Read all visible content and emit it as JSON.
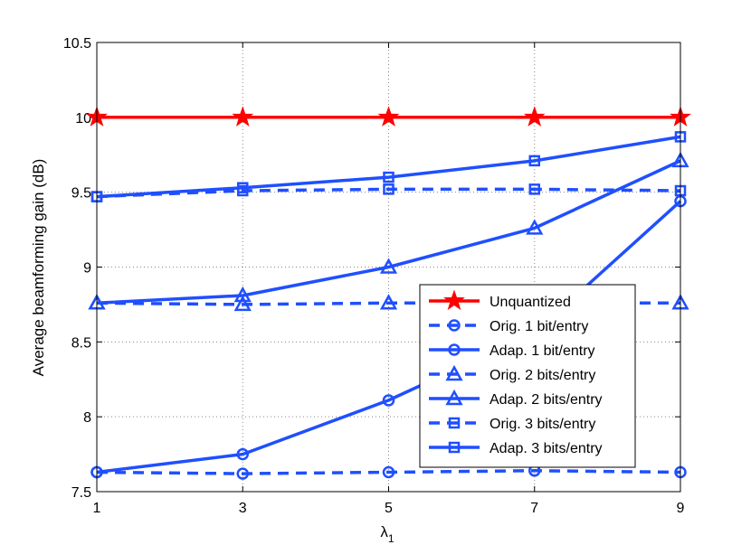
{
  "chart_data": {
    "type": "line",
    "xlabel": "λ",
    "xlabel_sub": "1",
    "ylabel": "Average beamforming gain (dB)",
    "x": [
      1,
      3,
      5,
      7,
      9
    ],
    "xlim": [
      1,
      9
    ],
    "ylim": [
      7.5,
      10.5
    ],
    "xticks": [
      "1",
      "3",
      "5",
      "7",
      "9"
    ],
    "yticks": [
      "7.5",
      "8",
      "8.5",
      "9",
      "9.5",
      "10",
      "10.5"
    ],
    "grid": true,
    "legend_position": "bottom-right",
    "series": [
      {
        "name": "Unquantized",
        "values": [
          10,
          10,
          10,
          10,
          10
        ],
        "color": "#ff0000",
        "marker": "star",
        "dash": "solid"
      },
      {
        "name": "Orig. 1 bit/entry",
        "values": [
          7.63,
          7.62,
          7.63,
          7.64,
          7.63
        ],
        "color": "#1f4fff",
        "marker": "circle",
        "dash": "dashed"
      },
      {
        "name": "Adap. 1 bit/entry",
        "values": [
          7.63,
          7.75,
          8.11,
          8.56,
          9.44
        ],
        "color": "#1f4fff",
        "marker": "circle",
        "dash": "solid"
      },
      {
        "name": "Orig. 2 bits/entry",
        "values": [
          8.76,
          8.75,
          8.76,
          8.76,
          8.76
        ],
        "color": "#1f4fff",
        "marker": "triangle",
        "dash": "dashed"
      },
      {
        "name": "Adap. 2 bits/entry",
        "values": [
          8.76,
          8.81,
          9.0,
          9.26,
          9.71
        ],
        "color": "#1f4fff",
        "marker": "triangle",
        "dash": "solid"
      },
      {
        "name": "Orig. 3 bits/entry",
        "values": [
          9.47,
          9.51,
          9.52,
          9.52,
          9.51
        ],
        "color": "#1f4fff",
        "marker": "square",
        "dash": "dashed"
      },
      {
        "name": "Adap. 3 bits/entry",
        "values": [
          9.47,
          9.53,
          9.6,
          9.71,
          9.87
        ],
        "color": "#1f4fff",
        "marker": "square",
        "dash": "solid"
      }
    ]
  }
}
